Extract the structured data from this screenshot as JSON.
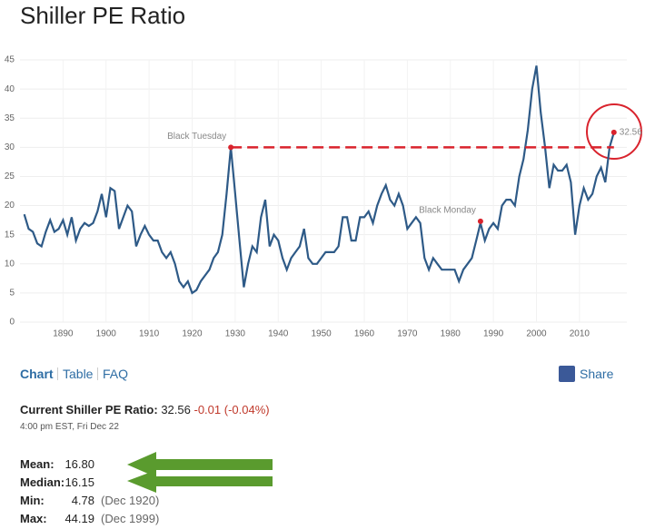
{
  "page_title": "Shiller PE Ratio",
  "chart_data": {
    "type": "line",
    "x": [
      1881,
      1882,
      1883,
      1884,
      1885,
      1886,
      1887,
      1888,
      1889,
      1890,
      1891,
      1892,
      1893,
      1894,
      1895,
      1896,
      1897,
      1898,
      1899,
      1900,
      1901,
      1902,
      1903,
      1904,
      1905,
      1906,
      1907,
      1908,
      1909,
      1910,
      1911,
      1912,
      1913,
      1914,
      1915,
      1916,
      1917,
      1918,
      1919,
      1920,
      1921,
      1922,
      1923,
      1924,
      1925,
      1926,
      1927,
      1928,
      1929,
      1930,
      1931,
      1932,
      1933,
      1934,
      1935,
      1936,
      1937,
      1938,
      1939,
      1940,
      1941,
      1942,
      1943,
      1944,
      1945,
      1946,
      1947,
      1948,
      1949,
      1950,
      1951,
      1952,
      1953,
      1954,
      1955,
      1956,
      1957,
      1958,
      1959,
      1960,
      1961,
      1962,
      1963,
      1964,
      1965,
      1966,
      1967,
      1968,
      1969,
      1970,
      1971,
      1972,
      1973,
      1974,
      1975,
      1976,
      1977,
      1978,
      1979,
      1980,
      1981,
      1982,
      1983,
      1984,
      1985,
      1986,
      1987,
      1988,
      1989,
      1990,
      1991,
      1992,
      1993,
      1994,
      1995,
      1996,
      1997,
      1998,
      1999,
      2000,
      2001,
      2002,
      2003,
      2004,
      2005,
      2006,
      2007,
      2008,
      2009,
      2010,
      2011,
      2012,
      2013,
      2014,
      2015,
      2016,
      2017,
      2018
    ],
    "values": [
      18.5,
      16,
      15.5,
      13.5,
      13,
      15.5,
      17.5,
      15.5,
      16,
      17.5,
      15,
      18,
      14,
      16,
      17,
      16.5,
      17,
      19,
      22,
      18,
      23,
      22.5,
      16,
      18,
      20,
      19,
      13,
      15,
      16.5,
      15,
      14,
      14,
      12,
      11,
      12,
      10,
      7,
      6,
      7,
      5,
      5.5,
      7,
      8,
      9,
      11,
      12,
      15,
      22,
      30,
      22,
      14,
      6,
      10,
      13,
      12,
      18,
      21,
      13,
      15,
      14,
      11,
      9,
      11,
      12,
      13,
      16,
      11,
      10,
      10,
      11,
      12,
      12,
      12,
      13,
      18,
      18,
      14,
      14,
      18,
      18,
      19,
      17,
      20,
      22,
      23.5,
      21,
      20,
      22,
      20,
      16,
      17,
      18,
      17,
      11,
      9,
      11,
      10,
      9,
      9,
      9,
      9,
      7,
      9,
      10,
      11,
      14,
      17,
      14,
      16,
      17,
      16,
      20,
      21,
      21,
      20,
      25,
      28,
      33,
      40,
      44,
      36,
      30,
      23,
      27,
      26,
      26,
      27,
      24,
      15,
      20,
      23,
      21,
      22,
      25,
      26.5,
      24,
      30,
      32.56
    ],
    "color": "#2e5a87",
    "xlim": [
      1880,
      2021
    ],
    "xticks": [
      1890,
      1900,
      1910,
      1920,
      1930,
      1940,
      1950,
      1960,
      1970,
      1980,
      1990,
      2000,
      2010
    ],
    "ylim": [
      0,
      45
    ],
    "yticks": [
      0,
      5,
      10,
      15,
      20,
      25,
      30,
      35,
      40,
      45
    ],
    "grid": true,
    "annotations": [
      {
        "text": "Black Tuesday",
        "x": 1929,
        "y": 30
      },
      {
        "text": "Black Monday",
        "x": 1987,
        "y": 17.3
      },
      {
        "text": "32.56",
        "x": 2018,
        "y": 32.56
      }
    ],
    "annotation_color": "#d9232d",
    "reference_line": {
      "y": 30,
      "x": [
        1929,
        2018
      ],
      "color": "#d9232d"
    }
  },
  "tabs": [
    "Chart",
    "Table",
    "FAQ"
  ],
  "share": "Share",
  "current": {
    "label": "Current Shiller PE Ratio:",
    "value": "32.56",
    "change": "-0.01 (-0.04%)",
    "time": "4:00 pm EST, Fri Dec 22"
  },
  "stats": [
    {
      "label": "Mean:",
      "value": "16.80"
    },
    {
      "label": "Median:",
      "value": "16.15"
    },
    {
      "label": "Min:",
      "value": "4.78",
      "date": "(Dec 1920)"
    },
    {
      "label": "Max:",
      "value": "44.19",
      "date": "(Dec 1999)"
    }
  ]
}
